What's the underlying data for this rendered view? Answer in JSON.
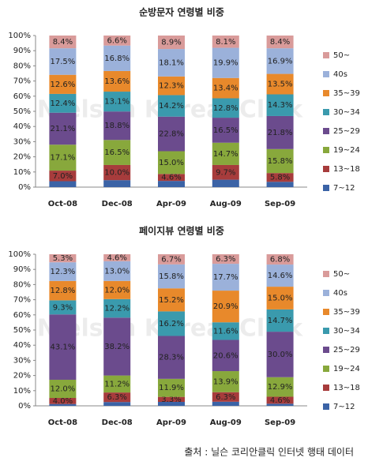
{
  "chart_data": [
    {
      "type": "stacked-bar",
      "title": "순방문자 연령별 비중",
      "watermark": "Nielsen KoreanClick",
      "categories": [
        "Oct-08",
        "Dec-08",
        "Apr-09",
        "Aug-09",
        "Sep-09"
      ],
      "ylim": [
        0,
        100
      ],
      "yticks": [
        {
          "value": 0,
          "label": "0%"
        },
        {
          "value": 10,
          "label": "10%"
        },
        {
          "value": 20,
          "label": "20%"
        },
        {
          "value": 30,
          "label": "30%"
        },
        {
          "value": 40,
          "label": "40%"
        },
        {
          "value": 50,
          "label": "50%"
        },
        {
          "value": 60,
          "label": "60%"
        },
        {
          "value": 70,
          "label": "70%"
        },
        {
          "value": 80,
          "label": "80%"
        },
        {
          "value": 90,
          "label": "90%"
        },
        {
          "value": 100,
          "label": "100%"
        }
      ],
      "series": [
        {
          "name": "7~12",
          "color": "#3b63a6",
          "values": [
            3.9,
            4.6,
            4.1,
            4.9,
            3.5
          ]
        },
        {
          "name": "13~18",
          "color": "#a73c3c",
          "values": [
            7.0,
            10.0,
            4.6,
            9.7,
            5.8
          ],
          "value_labels": [
            "7.0%",
            "10.0%",
            "4.6%",
            "9.7%",
            "5.8%"
          ]
        },
        {
          "name": "19~24",
          "color": "#88a83c",
          "values": [
            17.1,
            16.5,
            15.0,
            14.7,
            15.8
          ],
          "value_labels": [
            "17.1%",
            "16.5%",
            "15.0%",
            "14.7%",
            "15.8%"
          ]
        },
        {
          "name": "25~29",
          "color": "#6b4b8d",
          "values": [
            21.1,
            18.8,
            22.8,
            16.5,
            21.8
          ],
          "value_labels": [
            "21.1%",
            "18.8%",
            "22.8%",
            "16.5%",
            "21.8%"
          ]
        },
        {
          "name": "30~34",
          "color": "#3a9aad",
          "values": [
            12.4,
            13.1,
            14.2,
            12.8,
            14.3
          ],
          "value_labels": [
            "12.4%",
            "13.1%",
            "14.2%",
            "12.8%",
            "14.3%"
          ]
        },
        {
          "name": "35~39",
          "color": "#e8892b",
          "values": [
            12.6,
            13.6,
            12.3,
            13.4,
            13.5
          ],
          "value_labels": [
            "12.6%",
            "13.6%",
            "12.3%",
            "13.4%",
            "13.5%"
          ]
        },
        {
          "name": "40s",
          "color": "#9bb1da",
          "values": [
            17.5,
            16.8,
            18.1,
            19.9,
            16.9
          ],
          "value_labels": [
            "17.5%",
            "16.8%",
            "18.1%",
            "19.9%",
            "16.9%"
          ]
        },
        {
          "name": "50~",
          "color": "#d99b9a",
          "values": [
            8.4,
            6.6,
            8.9,
            8.1,
            8.4
          ],
          "value_labels": [
            "8.4%",
            "6.6%",
            "8.9%",
            "8.1%",
            "8.4%"
          ]
        }
      ]
    },
    {
      "type": "stacked-bar",
      "title": "페이지뷰 연령별 비중",
      "watermark": "Nielsen KoreanClick",
      "categories": [
        "Oct-08",
        "Dec-08",
        "Apr-09",
        "Aug-09",
        "Sep-09"
      ],
      "ylim": [
        0,
        100
      ],
      "yticks": [
        {
          "value": 0,
          "label": "0%"
        },
        {
          "value": 10,
          "label": "10%"
        },
        {
          "value": 20,
          "label": "20%"
        },
        {
          "value": 30,
          "label": "30%"
        },
        {
          "value": 40,
          "label": "40%"
        },
        {
          "value": 50,
          "label": "50%"
        },
        {
          "value": 60,
          "label": "60%"
        },
        {
          "value": 70,
          "label": "70%"
        },
        {
          "value": 80,
          "label": "80%"
        },
        {
          "value": 90,
          "label": "90%"
        },
        {
          "value": 100,
          "label": "100%"
        }
      ],
      "series": [
        {
          "name": "7~12",
          "color": "#3b63a6",
          "values": [
            1.2,
            2.5,
            2.6,
            2.7,
            1.4
          ]
        },
        {
          "name": "13~18",
          "color": "#a73c3c",
          "values": [
            4.0,
            6.3,
            3.3,
            6.3,
            4.6
          ],
          "value_labels": [
            "4.0%",
            "6.3%",
            "3.3%",
            "6.3%",
            "4.6%"
          ]
        },
        {
          "name": "19~24",
          "color": "#88a83c",
          "values": [
            12.0,
            11.2,
            11.9,
            13.9,
            12.9
          ],
          "value_labels": [
            "12.0%",
            "11.2%",
            "11.9%",
            "13.9%",
            "12.9%"
          ]
        },
        {
          "name": "25~29",
          "color": "#6b4b8d",
          "values": [
            43.1,
            38.2,
            28.3,
            20.6,
            30.0
          ],
          "value_labels": [
            "43.1%",
            "38.2%",
            "28.3%",
            "20.6%",
            "30.0%"
          ]
        },
        {
          "name": "30~34",
          "color": "#3a9aad",
          "values": [
            9.3,
            12.2,
            16.2,
            11.6,
            14.7
          ],
          "value_labels": [
            "9.3%",
            "12.2%",
            "16.2%",
            "11.6%",
            "14.7%"
          ]
        },
        {
          "name": "35~39",
          "color": "#e8892b",
          "values": [
            12.8,
            12.0,
            15.2,
            20.9,
            15.0
          ],
          "value_labels": [
            "12.8%",
            "12.0%",
            "15.2%",
            "20.9%",
            "15.0%"
          ]
        },
        {
          "name": "40s",
          "color": "#9bb1da",
          "values": [
            12.3,
            13.0,
            15.8,
            17.7,
            14.6
          ],
          "value_labels": [
            "12.3%",
            "13.0%",
            "15.8%",
            "17.7%",
            "14.6%"
          ]
        },
        {
          "name": "50~",
          "color": "#d99b9a",
          "values": [
            5.3,
            4.6,
            6.7,
            6.3,
            6.8
          ],
          "value_labels": [
            "5.3%",
            "4.6%",
            "6.7%",
            "6.3%",
            "6.8%"
          ]
        }
      ]
    }
  ],
  "source": "출처 : 닐슨 코리안클릭 인터넷 행태 데이터"
}
